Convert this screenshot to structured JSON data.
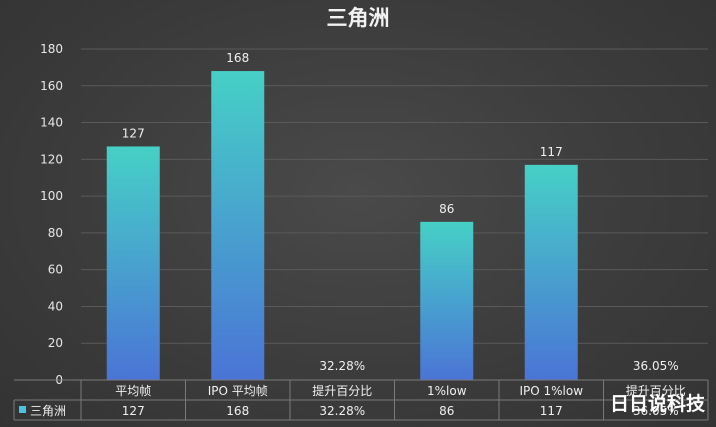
{
  "chart_data": {
    "type": "bar",
    "title": "三角洲",
    "categories": [
      "平均帧",
      "IPO 平均帧",
      "提升百分比",
      "1%low",
      "IPO 1%low",
      "提升百分比"
    ],
    "series": [
      {
        "name": "三角洲",
        "values": [
          127,
          168,
          32.28,
          86,
          117,
          36.05
        ],
        "labels": [
          "127",
          "168",
          "32.28%",
          "86",
          "117",
          "36.05%"
        ]
      }
    ],
    "ylim": [
      0,
      180
    ],
    "yticks": [
      0,
      20,
      40,
      60,
      80,
      100,
      120,
      140,
      160,
      180
    ],
    "grid": true,
    "legend_placement": "data-table",
    "data_table": true,
    "colors": {
      "bar_top": "#46d0c6",
      "bar_bottom": "#4a74d6",
      "legend_key": "#49c4e0"
    }
  },
  "watermark": "日日说科技"
}
